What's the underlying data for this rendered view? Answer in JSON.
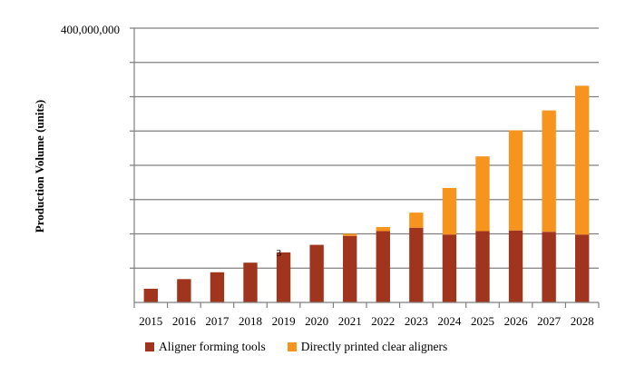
{
  "chart_data": {
    "type": "bar",
    "stacked": true,
    "categories": [
      "2015",
      "2016",
      "2017",
      "2018",
      "2019",
      "2020",
      "2021",
      "2022",
      "2023",
      "2024",
      "2025",
      "2026",
      "2027",
      "2028"
    ],
    "series": [
      {
        "name": "Aligner forming tools",
        "color": "#a0341c",
        "values": [
          20000000,
          34000000,
          44000000,
          58000000,
          73000000,
          84000000,
          97000000,
          104000000,
          109000000,
          99000000,
          104000000,
          105000000,
          103000000,
          99000000
        ]
      },
      {
        "name": "Directly printed clear aligners",
        "color": "#f7941d",
        "values": [
          0,
          0,
          0,
          0,
          0,
          0,
          3000000,
          6000000,
          22000000,
          68000000,
          109000000,
          146000000,
          177000000,
          217000000
        ]
      }
    ],
    "ylabel": "Production Volume (units)",
    "xlabel": "",
    "ylim": [
      0,
      400000000
    ],
    "ytick_label_shown": "400,000,000",
    "gridlines": 8,
    "grid": true,
    "legend": "bottom",
    "annotations": [
      {
        "text": "3",
        "category": "2019"
      }
    ]
  }
}
